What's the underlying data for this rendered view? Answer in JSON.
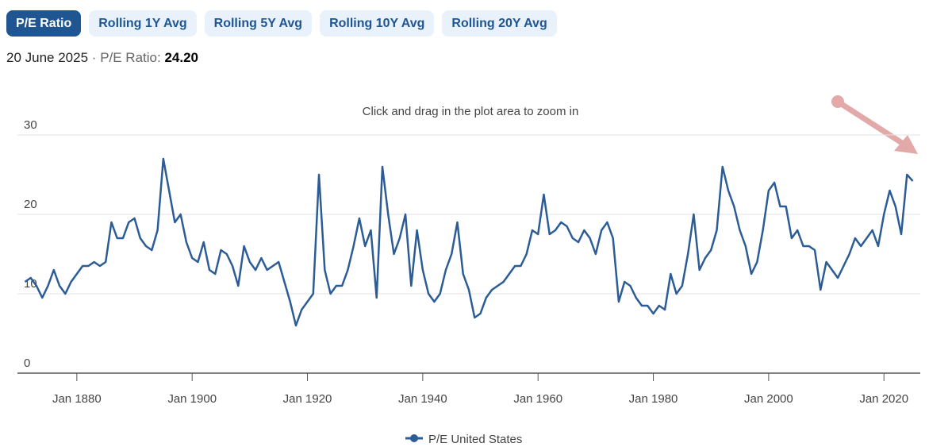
{
  "tabs": [
    "P/E Ratio",
    "Rolling 1Y Avg",
    "Rolling 5Y Avg",
    "Rolling 10Y Avg",
    "Rolling 20Y Avg"
  ],
  "header": {
    "date": "20 June 2025",
    "separator": "·",
    "metric": "P/E Ratio:",
    "value": "24.20"
  },
  "chart_data": {
    "type": "line",
    "annotation": "Click and drag in the plot area to zoom in",
    "x": [
      1871,
      1872,
      1873,
      1874,
      1875,
      1876,
      1877,
      1878,
      1879,
      1880,
      1881,
      1882,
      1883,
      1884,
      1885,
      1886,
      1887,
      1888,
      1889,
      1890,
      1891,
      1892,
      1893,
      1894,
      1895,
      1896,
      1897,
      1898,
      1899,
      1900,
      1901,
      1902,
      1903,
      1904,
      1905,
      1906,
      1907,
      1908,
      1909,
      1910,
      1911,
      1912,
      1913,
      1914,
      1915,
      1916,
      1917,
      1918,
      1919,
      1920,
      1921,
      1922,
      1923,
      1924,
      1925,
      1926,
      1927,
      1928,
      1929,
      1930,
      1931,
      1932,
      1933,
      1934,
      1935,
      1936,
      1937,
      1938,
      1939,
      1940,
      1941,
      1942,
      1943,
      1944,
      1945,
      1946,
      1947,
      1948,
      1949,
      1950,
      1951,
      1952,
      1953,
      1954,
      1955,
      1956,
      1957,
      1958,
      1959,
      1960,
      1961,
      1962,
      1963,
      1964,
      1965,
      1966,
      1967,
      1968,
      1969,
      1970,
      1971,
      1972,
      1973,
      1974,
      1975,
      1976,
      1977,
      1978,
      1979,
      1980,
      1981,
      1982,
      1983,
      1984,
      1985,
      1986,
      1987,
      1988,
      1989,
      1990,
      1991,
      1992,
      1993,
      1994,
      1995,
      1996,
      1997,
      1998,
      1999,
      2000,
      2001,
      2002,
      2003,
      2004,
      2005,
      2006,
      2007,
      2008,
      2009,
      2010,
      2011,
      2012,
      2013,
      2014,
      2015,
      2016,
      2017,
      2018,
      2019,
      2020,
      2021,
      2022,
      2023,
      2024,
      2025
    ],
    "series": [
      {
        "name": "P/E United States",
        "color": "#2c5c96",
        "values": [
          11.5,
          12,
          11,
          9.5,
          11,
          13,
          11,
          10,
          11.5,
          12.5,
          13.5,
          13.5,
          14,
          13.5,
          14,
          19,
          17,
          17,
          19,
          19.5,
          17,
          16,
          15.5,
          18,
          27,
          23,
          19,
          20,
          16.5,
          14.5,
          14,
          16.5,
          13,
          12.5,
          15.5,
          15,
          13.5,
          11,
          16,
          14,
          13,
          14.5,
          13,
          13.5,
          14,
          11.5,
          9,
          6,
          8,
          9,
          10,
          25,
          13,
          10,
          11,
          11,
          13,
          16,
          19.5,
          16,
          18,
          9.5,
          26,
          20,
          15,
          17,
          20,
          11,
          18,
          13,
          10,
          9,
          10,
          13,
          15,
          19,
          12.5,
          10.5,
          7,
          7.5,
          9.5,
          10.5,
          11,
          11.5,
          12.5,
          13.5,
          13.5,
          15,
          18,
          17.5,
          22.5,
          17.5,
          18,
          19,
          18.5,
          17,
          16.5,
          18,
          17,
          15,
          18,
          19,
          17,
          9,
          11.5,
          11,
          9.5,
          8.5,
          8.5,
          7.5,
          8.5,
          8,
          12.5,
          10,
          11,
          15,
          20,
          13,
          14.5,
          15.5,
          18,
          26,
          23,
          21,
          18,
          16,
          12.5,
          14,
          18,
          23,
          24,
          21,
          21,
          17,
          18,
          16,
          16,
          15.5,
          10.5,
          14,
          13,
          12,
          13.5,
          15,
          17,
          16,
          17,
          18,
          16,
          20,
          23,
          21,
          17.5,
          25,
          24.2
        ]
      }
    ],
    "xlim": [
      1869.7,
      2026.3
    ],
    "xticks": [
      {
        "value": 1880,
        "label": "Jan 1880"
      },
      {
        "value": 1900,
        "label": "Jan 1900"
      },
      {
        "value": 1920,
        "label": "Jan 1920"
      },
      {
        "value": 1940,
        "label": "Jan 1940"
      },
      {
        "value": 1960,
        "label": "Jan 1960"
      },
      {
        "value": 1980,
        "label": "Jan 1980"
      },
      {
        "value": 2000,
        "label": "Jan 2000"
      },
      {
        "value": 2020,
        "label": "Jan 2020"
      }
    ],
    "ylim": [
      0,
      30
    ],
    "yticks": [
      0,
      10,
      20,
      30
    ],
    "grid": true,
    "legend": "bottom"
  }
}
